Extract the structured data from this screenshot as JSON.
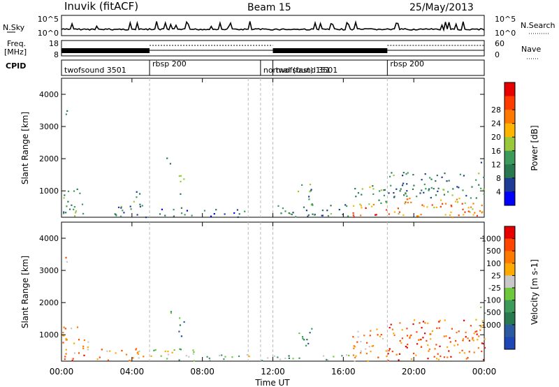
{
  "header": {
    "station": "Inuvik (fitACF)",
    "beam": "Beam 15",
    "date": "25/May/2013"
  },
  "summary_panels": {
    "nsky": {
      "label": "N.Sky",
      "ticks_left": [
        "10^5",
        "10^0"
      ],
      "right_label": "N.Search",
      "ticks_right": [
        "10^5",
        "10^0"
      ]
    },
    "freq": {
      "label_top": "Freq.",
      "label_bottom": "[MHz]",
      "ticks_left": [
        "18",
        "8"
      ],
      "right_label": "Nave",
      "ticks_right": [
        "60",
        "0"
      ]
    },
    "cpid": {
      "label": "CPID",
      "segments": [
        {
          "name": "twofsound 3501",
          "start_h": 0,
          "end_h": 5
        },
        {
          "name": "rbsp 200",
          "start_h": 5,
          "end_h": 11.3
        },
        {
          "name": "normal (fast) 151",
          "start_h": 11.3,
          "end_h": 12
        },
        {
          "name": "twofsound 3501",
          "start_h": 12,
          "end_h": 18.5
        },
        {
          "name": "rbsp 200",
          "start_h": 18.5,
          "end_h": 24
        }
      ],
      "dashed_marks_h": [
        5,
        10.6,
        11.3,
        12,
        18.5
      ]
    }
  },
  "chart_data": [
    {
      "type": "heatmap",
      "quantity": "Power",
      "ylabel": "Slant Range [km]",
      "ylim": [
        180,
        4500
      ],
      "yticks": [
        "1000",
        "2000",
        "3000",
        "4000"
      ],
      "ytick_values": [
        1000,
        2000,
        3000,
        4000
      ],
      "colorbar": {
        "label": "Power [dB]",
        "ticks": [
          "4",
          "8",
          "12",
          "16",
          "20",
          "24",
          "28"
        ],
        "colors": [
          "#0000ff",
          "#1e3c96",
          "#2a7850",
          "#3c9a5a",
          "#9ac83c",
          "#ffb400",
          "#ff7800",
          "#ff3c00",
          "#e60000"
        ]
      },
      "blobs": [
        {
          "h0": 0.0,
          "h1": 1.2,
          "r0": 200,
          "r1": 1200,
          "level": 0.35
        },
        {
          "h0": 0.1,
          "h1": 0.3,
          "r0": 3000,
          "r1": 3700,
          "level": 0.3
        },
        {
          "h0": 2.8,
          "h1": 4.8,
          "r0": 200,
          "r1": 700,
          "level": 0.3
        },
        {
          "h0": 4.0,
          "h1": 5.0,
          "r0": 800,
          "r1": 1000,
          "level": 0.2
        },
        {
          "h0": 5.5,
          "h1": 7.5,
          "r0": 200,
          "r1": 500,
          "level": 0.25
        },
        {
          "h0": 6.6,
          "h1": 7.0,
          "r0": 800,
          "r1": 1600,
          "level": 0.45
        },
        {
          "h0": 5.9,
          "h1": 6.2,
          "r0": 1700,
          "r1": 2100,
          "level": 0.3
        },
        {
          "h0": 8.0,
          "h1": 10.5,
          "r0": 200,
          "r1": 450,
          "level": 0.2
        },
        {
          "h0": 12.0,
          "h1": 16.5,
          "r0": 200,
          "r1": 600,
          "level": 0.3
        },
        {
          "h0": 13.4,
          "h1": 14.2,
          "r0": 600,
          "r1": 1300,
          "level": 0.35
        },
        {
          "h0": 16.5,
          "h1": 18.5,
          "r0": 200,
          "r1": 600,
          "level": 0.75
        },
        {
          "h0": 16.5,
          "h1": 18.5,
          "r0": 600,
          "r1": 1200,
          "level": 0.4
        },
        {
          "h0": 18.5,
          "h1": 24.0,
          "r0": 200,
          "r1": 800,
          "level": 0.7
        },
        {
          "h0": 18.5,
          "h1": 24.0,
          "r0": 800,
          "r1": 1600,
          "level": 0.3
        },
        {
          "h0": 23.6,
          "h1": 23.9,
          "r0": 1800,
          "r1": 2100,
          "level": 0.3
        }
      ]
    },
    {
      "type": "heatmap",
      "quantity": "Velocity",
      "ylabel": "Slant Range [km]",
      "ylim": [
        180,
        4500
      ],
      "yticks": [
        "1000",
        "2000",
        "3000",
        "4000"
      ],
      "ytick_values": [
        1000,
        2000,
        3000,
        4000
      ],
      "xlabel": "Time UT",
      "xticks": [
        "00:00",
        "04:00",
        "08:00",
        "12:00",
        "16:00",
        "20:00",
        "00:00"
      ],
      "xtick_hours": [
        0,
        4,
        8,
        12,
        16,
        20,
        24
      ],
      "colorbar": {
        "label": "Velocity [m s-1]",
        "ticks": [
          "1000",
          "500",
          "100",
          "25",
          "-25",
          "-100",
          "-500",
          "-1000"
        ],
        "colors": [
          "#1e46b4",
          "#2c5aa0",
          "#2a7850",
          "#3c9a5a",
          "#6ec83c",
          "#c8c8c8",
          "#ffaa00",
          "#ff7800",
          "#ff4600",
          "#e60000"
        ]
      },
      "blobs": [
        {
          "h0": 0.0,
          "h1": 1.5,
          "r0": 200,
          "r1": 1300,
          "level": 0.75
        },
        {
          "h0": 0.1,
          "h1": 0.3,
          "r0": 3000,
          "r1": 3700,
          "level": 0.7
        },
        {
          "h0": 2.0,
          "h1": 5.0,
          "r0": 200,
          "r1": 600,
          "level": 0.72
        },
        {
          "h0": 5.0,
          "h1": 7.8,
          "r0": 200,
          "r1": 600,
          "level": 0.5
        },
        {
          "h0": 6.6,
          "h1": 7.0,
          "r0": 800,
          "r1": 1600,
          "level": 0.25
        },
        {
          "h0": 5.9,
          "h1": 6.2,
          "r0": 1700,
          "r1": 2100,
          "level": 0.3
        },
        {
          "h0": 8.0,
          "h1": 12.0,
          "r0": 200,
          "r1": 400,
          "level": 0.45
        },
        {
          "h0": 12.0,
          "h1": 16.5,
          "r0": 200,
          "r1": 400,
          "level": 0.45
        },
        {
          "h0": 13.4,
          "h1": 14.2,
          "r0": 600,
          "r1": 1300,
          "level": 0.3
        },
        {
          "h0": 16.5,
          "h1": 18.5,
          "r0": 200,
          "r1": 1200,
          "level": 0.72
        },
        {
          "h0": 18.5,
          "h1": 24.0,
          "r0": 200,
          "r1": 1500,
          "level": 0.8
        },
        {
          "h0": 23.6,
          "h1": 23.9,
          "r0": 1800,
          "r1": 2100,
          "level": 0.3
        }
      ]
    }
  ]
}
